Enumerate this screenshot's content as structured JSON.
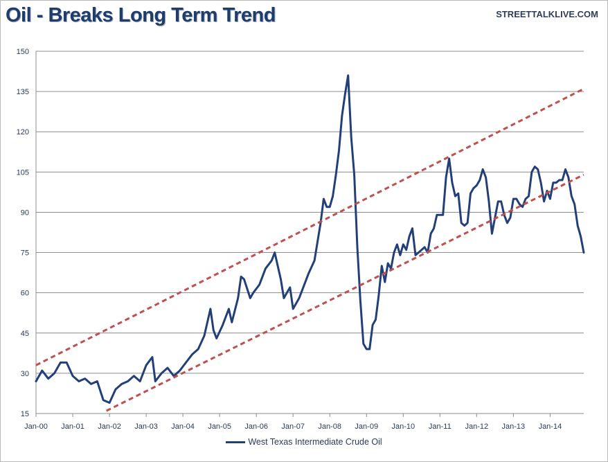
{
  "header": {
    "title": "Oil - Breaks Long Term Trend",
    "source": "STREETTALKLIVE.COM"
  },
  "colors": {
    "series": "#223f78",
    "trend": "#c0504d",
    "grid": "#8c8c8c",
    "axis": "#2b3a55"
  },
  "chart_data": {
    "type": "line",
    "title": "Oil - Breaks Long Term Trend",
    "xlabel": "",
    "ylabel": "",
    "ylim": [
      15,
      150
    ],
    "xlim": [
      "2000-01",
      "2014-12"
    ],
    "yticks": [
      15,
      30,
      45,
      60,
      75,
      90,
      105,
      120,
      135,
      150
    ],
    "xticks": [
      "Jan-00",
      "Jan-01",
      "Jan-02",
      "Jan-03",
      "Jan-04",
      "Jan-05",
      "Jan-06",
      "Jan-07",
      "Jan-08",
      "Jan-09",
      "Jan-10",
      "Jan-11",
      "Jan-12",
      "Jan-13",
      "Jan-14"
    ],
    "grid": "horizontal",
    "legend_position": "bottom-center",
    "series": [
      {
        "name": "West Texas Intermediate Crude Oil",
        "points": [
          [
            "2000-01",
            27
          ],
          [
            "2000-03",
            31
          ],
          [
            "2000-05",
            28
          ],
          [
            "2000-07",
            30
          ],
          [
            "2000-09",
            34
          ],
          [
            "2000-11",
            34
          ],
          [
            "2001-01",
            29
          ],
          [
            "2001-03",
            27
          ],
          [
            "2001-05",
            28
          ],
          [
            "2001-07",
            26
          ],
          [
            "2001-09",
            27
          ],
          [
            "2001-11",
            20
          ],
          [
            "2002-01",
            19
          ],
          [
            "2002-03",
            24
          ],
          [
            "2002-05",
            26
          ],
          [
            "2002-07",
            27
          ],
          [
            "2002-09",
            29
          ],
          [
            "2002-11",
            27
          ],
          [
            "2003-01",
            33
          ],
          [
            "2003-03",
            36
          ],
          [
            "2003-04",
            27
          ],
          [
            "2003-06",
            30
          ],
          [
            "2003-08",
            32
          ],
          [
            "2003-10",
            29
          ],
          [
            "2003-12",
            31
          ],
          [
            "2004-02",
            34
          ],
          [
            "2004-04",
            37
          ],
          [
            "2004-06",
            39
          ],
          [
            "2004-08",
            44
          ],
          [
            "2004-10",
            54
          ],
          [
            "2004-11",
            46
          ],
          [
            "2004-12",
            43
          ],
          [
            "2005-02",
            48
          ],
          [
            "2005-04",
            54
          ],
          [
            "2005-05",
            49
          ],
          [
            "2005-07",
            58
          ],
          [
            "2005-08",
            66
          ],
          [
            "2005-09",
            65
          ],
          [
            "2005-11",
            58
          ],
          [
            "2005-12",
            60
          ],
          [
            "2006-02",
            63
          ],
          [
            "2006-04",
            69
          ],
          [
            "2006-06",
            72
          ],
          [
            "2006-07",
            75
          ],
          [
            "2006-09",
            65
          ],
          [
            "2006-10",
            58
          ],
          [
            "2006-12",
            62
          ],
          [
            "2007-01",
            54
          ],
          [
            "2007-03",
            58
          ],
          [
            "2007-05",
            64
          ],
          [
            "2007-06",
            67
          ],
          [
            "2007-08",
            72
          ],
          [
            "2007-09",
            79
          ],
          [
            "2007-10",
            86
          ],
          [
            "2007-11",
            95
          ],
          [
            "2007-12",
            92
          ],
          [
            "2008-01",
            92
          ],
          [
            "2008-02",
            96
          ],
          [
            "2008-03",
            104
          ],
          [
            "2008-04",
            113
          ],
          [
            "2008-05",
            126
          ],
          [
            "2008-06",
            134
          ],
          [
            "2008-07",
            141
          ],
          [
            "2008-08",
            118
          ],
          [
            "2008-09",
            104
          ],
          [
            "2008-10",
            77
          ],
          [
            "2008-11",
            57
          ],
          [
            "2008-12",
            41
          ],
          [
            "2009-01",
            39
          ],
          [
            "2009-02",
            39
          ],
          [
            "2009-03",
            48
          ],
          [
            "2009-04",
            50
          ],
          [
            "2009-05",
            59
          ],
          [
            "2009-06",
            70
          ],
          [
            "2009-07",
            64
          ],
          [
            "2009-08",
            71
          ],
          [
            "2009-09",
            69
          ],
          [
            "2009-10",
            75
          ],
          [
            "2009-11",
            78
          ],
          [
            "2009-12",
            74
          ],
          [
            "2010-01",
            78
          ],
          [
            "2010-02",
            76
          ],
          [
            "2010-03",
            81
          ],
          [
            "2010-04",
            84
          ],
          [
            "2010-05",
            74
          ],
          [
            "2010-06",
            75
          ],
          [
            "2010-07",
            76
          ],
          [
            "2010-08",
            77
          ],
          [
            "2010-09",
            75
          ],
          [
            "2010-10",
            82
          ],
          [
            "2010-11",
            84
          ],
          [
            "2010-12",
            89
          ],
          [
            "2011-01",
            89
          ],
          [
            "2011-02",
            89
          ],
          [
            "2011-03",
            103
          ],
          [
            "2011-04",
            110
          ],
          [
            "2011-05",
            101
          ],
          [
            "2011-06",
            96
          ],
          [
            "2011-07",
            97
          ],
          [
            "2011-08",
            86
          ],
          [
            "2011-09",
            85
          ],
          [
            "2011-10",
            86
          ],
          [
            "2011-11",
            97
          ],
          [
            "2011-12",
            99
          ],
          [
            "2012-01",
            100
          ],
          [
            "2012-02",
            102
          ],
          [
            "2012-03",
            106
          ],
          [
            "2012-04",
            103
          ],
          [
            "2012-05",
            94
          ],
          [
            "2012-06",
            82
          ],
          [
            "2012-07",
            88
          ],
          [
            "2012-08",
            94
          ],
          [
            "2012-09",
            94
          ],
          [
            "2012-10",
            89
          ],
          [
            "2012-11",
            86
          ],
          [
            "2012-12",
            88
          ],
          [
            "2013-01",
            95
          ],
          [
            "2013-02",
            95
          ],
          [
            "2013-03",
            93
          ],
          [
            "2013-04",
            92
          ],
          [
            "2013-05",
            95
          ],
          [
            "2013-06",
            96
          ],
          [
            "2013-07",
            105
          ],
          [
            "2013-08",
            107
          ],
          [
            "2013-09",
            106
          ],
          [
            "2013-10",
            101
          ],
          [
            "2013-11",
            94
          ],
          [
            "2013-12",
            98
          ],
          [
            "2014-01",
            95
          ],
          [
            "2014-02",
            101
          ],
          [
            "2014-03",
            101
          ],
          [
            "2014-04",
            102
          ],
          [
            "2014-05",
            102
          ],
          [
            "2014-06",
            106
          ],
          [
            "2014-07",
            103
          ],
          [
            "2014-08",
            96
          ],
          [
            "2014-09",
            93
          ],
          [
            "2014-10",
            85
          ],
          [
            "2014-11",
            81
          ],
          [
            "2014-12",
            75
          ]
        ]
      }
    ],
    "trendlines": [
      {
        "style": "dashed",
        "color": "#c0504d",
        "from": [
          "2000-01",
          33
        ],
        "to": [
          "2014-12",
          136
        ]
      },
      {
        "style": "dashed",
        "color": "#c0504d",
        "from": [
          "2001-12",
          16
        ],
        "to": [
          "2014-12",
          104
        ]
      }
    ]
  }
}
